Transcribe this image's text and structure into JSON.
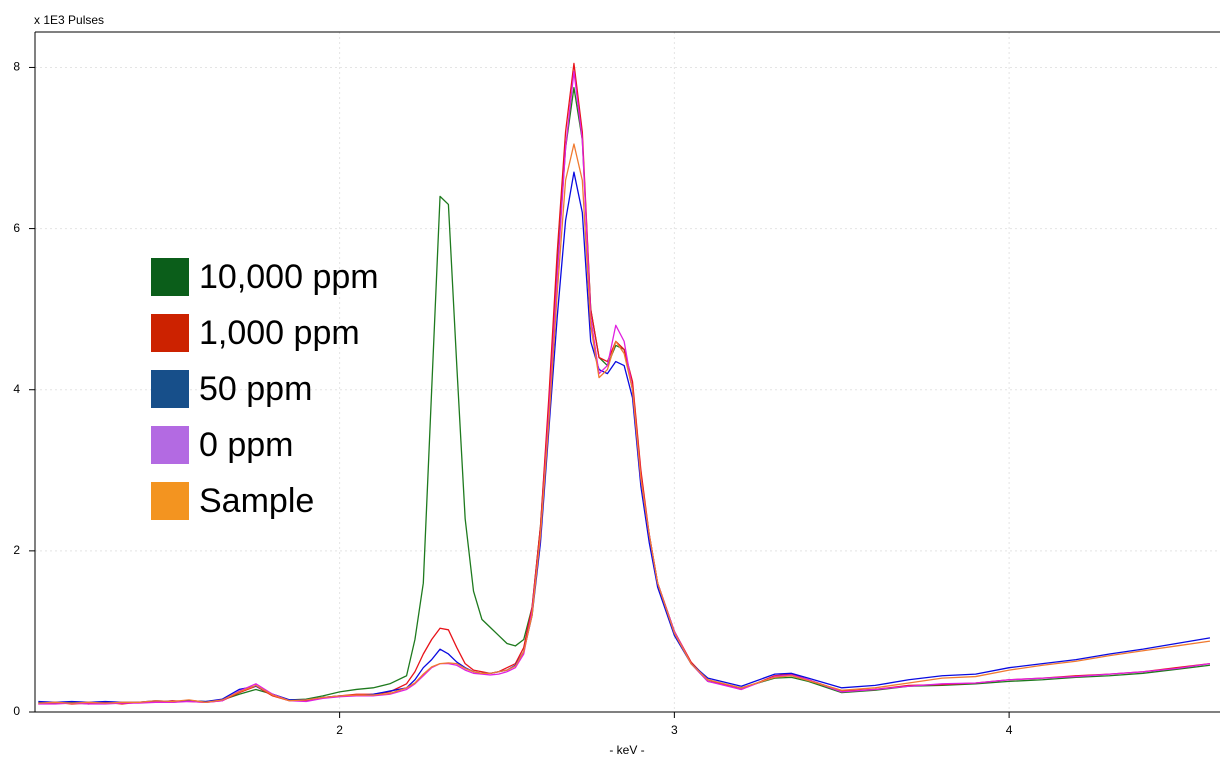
{
  "chart_data": {
    "type": "line",
    "y_label": "x 1E3 Pulses",
    "x_label": "- keV -",
    "xlim": [
      1.09,
      4.63
    ],
    "ylim": [
      0,
      8.44
    ],
    "xticks": [
      2,
      3,
      4
    ],
    "yticks": [
      0,
      2,
      4,
      6,
      8
    ],
    "grid": true,
    "legend_position": "left",
    "x": [
      1.1,
      1.15,
      1.2,
      1.25,
      1.3,
      1.35,
      1.4,
      1.45,
      1.5,
      1.55,
      1.6,
      1.65,
      1.7,
      1.75,
      1.8,
      1.85,
      1.9,
      1.95,
      2.0,
      2.05,
      2.1,
      2.15,
      2.2,
      2.225,
      2.25,
      2.275,
      2.3,
      2.325,
      2.35,
      2.375,
      2.4,
      2.425,
      2.45,
      2.475,
      2.5,
      2.525,
      2.55,
      2.575,
      2.6,
      2.625,
      2.65,
      2.675,
      2.7,
      2.725,
      2.75,
      2.775,
      2.8,
      2.825,
      2.85,
      2.875,
      2.9,
      2.925,
      2.95,
      3.0,
      3.05,
      3.1,
      3.2,
      3.3,
      3.35,
      3.4,
      3.5,
      3.6,
      3.7,
      3.8,
      3.9,
      4.0,
      4.1,
      4.2,
      4.3,
      4.4,
      4.5,
      4.6
    ],
    "series": [
      {
        "name": "10,000 ppm",
        "color": "#1e7a1e",
        "legend_color": "#0b5e1a",
        "values": [
          0.12,
          0.11,
          0.12,
          0.1,
          0.12,
          0.11,
          0.12,
          0.13,
          0.12,
          0.14,
          0.13,
          0.15,
          0.22,
          0.28,
          0.22,
          0.15,
          0.16,
          0.2,
          0.25,
          0.28,
          0.3,
          0.35,
          0.45,
          0.9,
          1.6,
          4.0,
          6.4,
          6.3,
          4.3,
          2.4,
          1.5,
          1.15,
          1.05,
          0.95,
          0.85,
          0.82,
          0.9,
          1.3,
          2.3,
          3.8,
          5.5,
          7.0,
          7.75,
          7.1,
          5.0,
          4.4,
          4.3,
          4.55,
          4.5,
          4.0,
          2.9,
          2.2,
          1.6,
          1.0,
          0.6,
          0.38,
          0.3,
          0.42,
          0.43,
          0.38,
          0.24,
          0.27,
          0.32,
          0.33,
          0.35,
          0.38,
          0.4,
          0.43,
          0.45,
          0.48,
          0.53,
          0.58
        ]
      },
      {
        "name": "1,000 ppm",
        "color": "#e8131a",
        "legend_color": "#cc2200",
        "values": [
          0.1,
          0.12,
          0.1,
          0.11,
          0.12,
          0.1,
          0.12,
          0.12,
          0.14,
          0.13,
          0.12,
          0.14,
          0.24,
          0.32,
          0.2,
          0.14,
          0.14,
          0.18,
          0.2,
          0.22,
          0.22,
          0.25,
          0.35,
          0.5,
          0.72,
          0.9,
          1.04,
          1.02,
          0.8,
          0.6,
          0.52,
          0.5,
          0.48,
          0.5,
          0.55,
          0.6,
          0.8,
          1.3,
          2.3,
          3.9,
          5.7,
          7.2,
          8.05,
          7.2,
          5.0,
          4.4,
          4.35,
          4.6,
          4.5,
          4.1,
          3.0,
          2.2,
          1.6,
          1.0,
          0.62,
          0.4,
          0.28,
          0.45,
          0.47,
          0.4,
          0.26,
          0.28,
          0.33,
          0.34,
          0.36,
          0.4,
          0.42,
          0.45,
          0.47,
          0.5,
          0.55,
          0.6
        ]
      },
      {
        "name": "50 ppm",
        "color": "#0a0ae0",
        "legend_color": "#174f8a",
        "values": [
          0.13,
          0.12,
          0.13,
          0.12,
          0.13,
          0.12,
          0.12,
          0.14,
          0.13,
          0.14,
          0.13,
          0.16,
          0.28,
          0.32,
          0.22,
          0.15,
          0.15,
          0.18,
          0.2,
          0.2,
          0.22,
          0.26,
          0.3,
          0.4,
          0.55,
          0.65,
          0.78,
          0.72,
          0.62,
          0.55,
          0.5,
          0.48,
          0.48,
          0.5,
          0.52,
          0.58,
          0.75,
          1.2,
          2.1,
          3.5,
          4.9,
          6.1,
          6.7,
          6.2,
          4.6,
          4.25,
          4.2,
          4.35,
          4.3,
          3.9,
          2.8,
          2.1,
          1.55,
          0.95,
          0.6,
          0.42,
          0.32,
          0.47,
          0.48,
          0.42,
          0.3,
          0.33,
          0.4,
          0.45,
          0.47,
          0.55,
          0.6,
          0.65,
          0.72,
          0.78,
          0.85,
          0.92
        ]
      },
      {
        "name": "0 ppm",
        "color": "#e020e0",
        "legend_color": "#b36ae2",
        "values": [
          0.1,
          0.1,
          0.11,
          0.1,
          0.1,
          0.11,
          0.11,
          0.12,
          0.12,
          0.13,
          0.12,
          0.14,
          0.26,
          0.35,
          0.22,
          0.14,
          0.13,
          0.17,
          0.19,
          0.2,
          0.2,
          0.22,
          0.28,
          0.35,
          0.45,
          0.55,
          0.6,
          0.6,
          0.58,
          0.52,
          0.48,
          0.47,
          0.46,
          0.47,
          0.5,
          0.55,
          0.72,
          1.25,
          2.2,
          3.7,
          5.4,
          7.0,
          7.95,
          7.1,
          4.9,
          4.2,
          4.3,
          4.8,
          4.6,
          4.0,
          2.9,
          2.2,
          1.6,
          1.0,
          0.6,
          0.38,
          0.28,
          0.44,
          0.46,
          0.4,
          0.25,
          0.28,
          0.32,
          0.35,
          0.36,
          0.4,
          0.42,
          0.44,
          0.47,
          0.5,
          0.54,
          0.6
        ]
      },
      {
        "name": "Sample",
        "color": "#f07a30",
        "legend_color": "#f39420",
        "values": [
          0.11,
          0.12,
          0.11,
          0.12,
          0.11,
          0.12,
          0.12,
          0.14,
          0.13,
          0.15,
          0.12,
          0.15,
          0.25,
          0.33,
          0.21,
          0.14,
          0.15,
          0.18,
          0.2,
          0.21,
          0.21,
          0.23,
          0.3,
          0.36,
          0.47,
          0.56,
          0.6,
          0.61,
          0.6,
          0.54,
          0.5,
          0.48,
          0.48,
          0.5,
          0.52,
          0.57,
          0.75,
          1.2,
          2.2,
          3.6,
          5.2,
          6.6,
          7.05,
          6.6,
          4.8,
          4.15,
          4.25,
          4.6,
          4.45,
          4.0,
          2.9,
          2.2,
          1.6,
          0.98,
          0.6,
          0.4,
          0.3,
          0.43,
          0.45,
          0.39,
          0.27,
          0.3,
          0.36,
          0.42,
          0.44,
          0.52,
          0.58,
          0.63,
          0.7,
          0.76,
          0.82,
          0.88
        ]
      }
    ]
  }
}
